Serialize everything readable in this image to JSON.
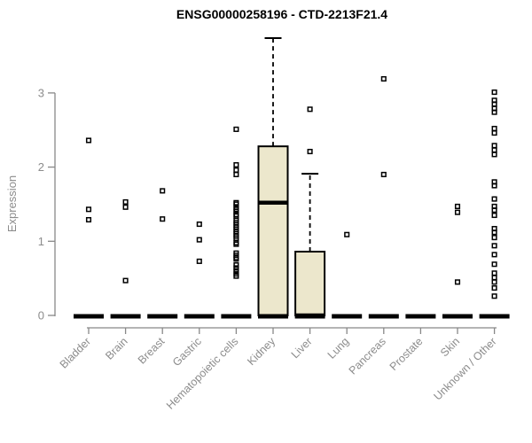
{
  "chart_data": {
    "type": "boxplot",
    "title": "ENSG00000258196 - CTD-2213F21.4",
    "ylabel": "Expression",
    "xlabel": "",
    "ylim": [
      0,
      3.9
    ],
    "yticks": [
      "0",
      "1",
      "2",
      "3"
    ],
    "grid": "off",
    "legend": "none",
    "categories": [
      "Bladder",
      "Brain",
      "Breast",
      "Gastric",
      "Hematopoietic cells",
      "Kidney",
      "Liver",
      "Lung",
      "Pancreas",
      "Prostate",
      "Skin",
      "Unknown / Other"
    ],
    "groups": [
      {
        "label": "Bladder",
        "zero_median_bar": true,
        "box": null,
        "points": [
          2.36,
          1.43,
          1.29
        ]
      },
      {
        "label": "Brain",
        "zero_median_bar": true,
        "box": null,
        "points": [
          1.53,
          1.46,
          0.47
        ]
      },
      {
        "label": "Breast",
        "zero_median_bar": true,
        "box": null,
        "points": [
          1.68,
          1.3
        ]
      },
      {
        "label": "Gastric",
        "zero_median_bar": true,
        "box": null,
        "points": [
          1.23,
          1.02,
          0.73
        ]
      },
      {
        "label": "Hematopoietic cells",
        "zero_median_bar": true,
        "box": null,
        "points": [
          2.51,
          2.03,
          1.96,
          1.9,
          1.52,
          1.5,
          1.46,
          1.43,
          1.4,
          1.36,
          1.34,
          1.28,
          1.25,
          1.22,
          1.19,
          1.16,
          1.13,
          1.1,
          1.07,
          1.04,
          0.98,
          0.96,
          0.84,
          0.81,
          0.78,
          0.76,
          0.68,
          0.64,
          0.6,
          0.56,
          0.53
        ]
      },
      {
        "label": "Kidney",
        "zero_median_bar": true,
        "box": {
          "q1": 0,
          "median": 1.52,
          "q3": 2.28,
          "whisker_low": 0,
          "whisker_high": 3.74
        },
        "points": []
      },
      {
        "label": "Liver",
        "zero_median_bar": true,
        "box": {
          "q1": 0,
          "median": 0,
          "q3": 0.86,
          "whisker_low": 0,
          "whisker_high": 1.91
        },
        "points": [
          2.78,
          2.21
        ]
      },
      {
        "label": "Lung",
        "zero_median_bar": true,
        "box": null,
        "points": [
          1.09
        ]
      },
      {
        "label": "Pancreas",
        "zero_median_bar": true,
        "box": null,
        "points": [
          3.19,
          1.9
        ]
      },
      {
        "label": "Prostate",
        "zero_median_bar": true,
        "box": null,
        "points": []
      },
      {
        "label": "Skin",
        "zero_median_bar": true,
        "box": null,
        "points": [
          1.47,
          1.39,
          0.45
        ]
      },
      {
        "label": "Unknown / Other",
        "zero_median_bar": true,
        "box": null,
        "points": [
          3.01,
          2.9,
          2.85,
          2.79,
          2.74,
          2.52,
          2.46,
          2.29,
          2.23,
          2.17,
          1.8,
          1.75,
          1.57,
          1.47,
          1.42,
          1.35,
          1.17,
          1.12,
          1.05,
          0.94,
          0.82,
          0.69,
          0.57,
          0.51,
          0.45,
          0.37,
          0.26
        ]
      }
    ],
    "colors": {
      "box_fill": "#ece7cc",
      "box_stroke": "#000000",
      "median": "#000000",
      "point_stroke": "#000000",
      "axis": "#888888",
      "tick_text": "#8c8c8c",
      "title_text": "#000000"
    }
  }
}
